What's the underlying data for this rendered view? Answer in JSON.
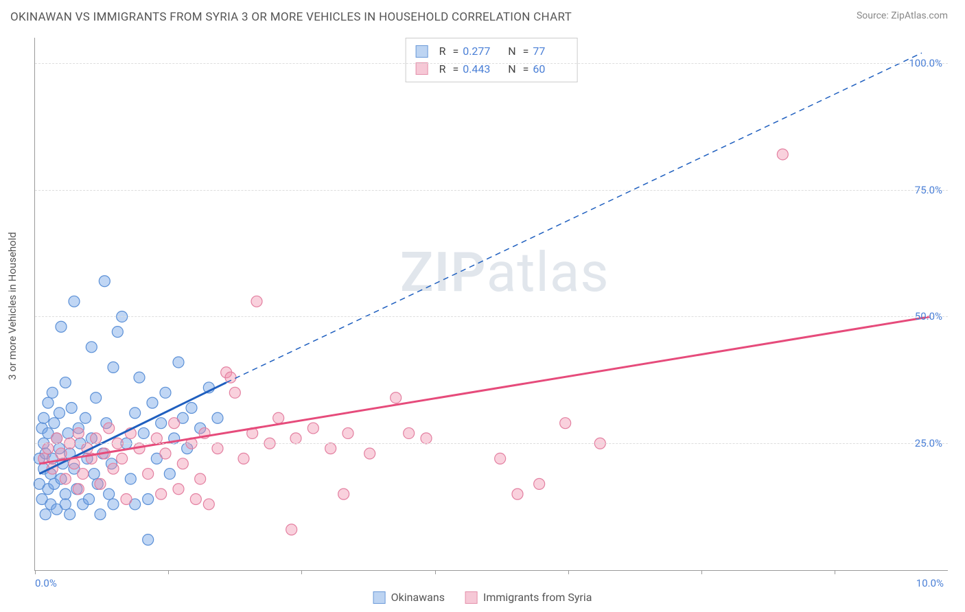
{
  "header": {
    "title": "OKINAWAN VS IMMIGRANTS FROM SYRIA 3 OR MORE VEHICLES IN HOUSEHOLD CORRELATION CHART",
    "source": "Source: ZipAtlas.com"
  },
  "watermark": {
    "zip": "ZIP",
    "atlas": "atlas"
  },
  "chart": {
    "type": "scatter",
    "background_color": "#ffffff",
    "grid_color": "#dddddd",
    "axis_color": "#999999",
    "xlim": [
      0,
      10.5
    ],
    "ylim": [
      0,
      105
    ],
    "x_axis": {
      "label_color": "#4a7fd6",
      "min_label": "0.0%",
      "max_label": "10.0%",
      "tick_positions_pct": [
        0,
        14.6,
        29.2,
        43.8,
        58.4,
        73.0,
        87.6
      ]
    },
    "y_axis": {
      "label": "3 or more Vehicles in Household",
      "label_fontsize": 15,
      "label_color": "#555555",
      "ticks": [
        {
          "value": 25,
          "label": "25.0%"
        },
        {
          "value": 50,
          "label": "50.0%"
        },
        {
          "value": 75,
          "label": "75.0%"
        },
        {
          "value": 100,
          "label": "100.0%"
        }
      ],
      "tick_color": "#4a7fd6"
    },
    "series": [
      {
        "id": "okinawans",
        "label": "Okinawans",
        "color_fill": "rgba(116,165,231,0.45)",
        "color_stroke": "#5a8fd6",
        "swatch_fill": "#bdd4f2",
        "swatch_border": "#6a99d8",
        "r_value": "0.277",
        "n_value": "77",
        "marker_radius": 8,
        "trend": {
          "color": "#1f5fbf",
          "width": 3,
          "solid": {
            "x1": 0.05,
            "y1": 19,
            "x2": 2.2,
            "y2": 37
          },
          "dashed": {
            "x1": 2.2,
            "y1": 37,
            "x2": 10.2,
            "y2": 102
          }
        },
        "points": [
          [
            0.05,
            17
          ],
          [
            0.05,
            22
          ],
          [
            0.08,
            28
          ],
          [
            0.08,
            14
          ],
          [
            0.1,
            20
          ],
          [
            0.1,
            25
          ],
          [
            0.1,
            30
          ],
          [
            0.12,
            11
          ],
          [
            0.12,
            23
          ],
          [
            0.15,
            16
          ],
          [
            0.15,
            27
          ],
          [
            0.15,
            33
          ],
          [
            0.18,
            19
          ],
          [
            0.18,
            13
          ],
          [
            0.2,
            35
          ],
          [
            0.2,
            22
          ],
          [
            0.22,
            29
          ],
          [
            0.22,
            17
          ],
          [
            0.25,
            26
          ],
          [
            0.25,
            12
          ],
          [
            0.28,
            24
          ],
          [
            0.28,
            31
          ],
          [
            0.3,
            18
          ],
          [
            0.3,
            48
          ],
          [
            0.32,
            21
          ],
          [
            0.35,
            15
          ],
          [
            0.35,
            37
          ],
          [
            0.38,
            27
          ],
          [
            0.4,
            11
          ],
          [
            0.4,
            23
          ],
          [
            0.42,
            32
          ],
          [
            0.45,
            20
          ],
          [
            0.48,
            16
          ],
          [
            0.5,
            28
          ],
          [
            0.52,
            25
          ],
          [
            0.55,
            13
          ],
          [
            0.58,
            30
          ],
          [
            0.6,
            22
          ],
          [
            0.62,
            14
          ],
          [
            0.65,
            26
          ],
          [
            0.68,
            19
          ],
          [
            0.7,
            34
          ],
          [
            0.72,
            17
          ],
          [
            0.75,
            11
          ],
          [
            0.78,
            23
          ],
          [
            0.8,
            57
          ],
          [
            0.82,
            29
          ],
          [
            0.85,
            15
          ],
          [
            0.88,
            21
          ],
          [
            0.9,
            40
          ],
          [
            0.95,
            47
          ],
          [
            1.0,
            50
          ],
          [
            1.05,
            25
          ],
          [
            1.1,
            18
          ],
          [
            1.15,
            31
          ],
          [
            1.2,
            38
          ],
          [
            1.25,
            27
          ],
          [
            1.3,
            14
          ],
          [
            1.3,
            6
          ],
          [
            1.35,
            33
          ],
          [
            1.4,
            22
          ],
          [
            1.45,
            29
          ],
          [
            1.5,
            35
          ],
          [
            1.55,
            19
          ],
          [
            1.6,
            26
          ],
          [
            1.65,
            41
          ],
          [
            1.7,
            30
          ],
          [
            1.75,
            24
          ],
          [
            1.8,
            32
          ],
          [
            1.9,
            28
          ],
          [
            2.0,
            36
          ],
          [
            2.1,
            30
          ],
          [
            1.15,
            13
          ],
          [
            0.65,
            44
          ],
          [
            0.45,
            53
          ],
          [
            0.9,
            13
          ],
          [
            0.35,
            13
          ]
        ]
      },
      {
        "id": "syria",
        "label": "Immigrants from Syria",
        "color_fill": "rgba(240,140,170,0.40)",
        "color_stroke": "#e37fa0",
        "swatch_fill": "#f6c8d6",
        "swatch_border": "#e48faa",
        "r_value": "0.443",
        "n_value": "60",
        "marker_radius": 8,
        "trend": {
          "color": "#e64b7b",
          "width": 3,
          "solid": {
            "x1": 0.05,
            "y1": 21,
            "x2": 10.3,
            "y2": 50
          },
          "dashed": null
        },
        "points": [
          [
            0.1,
            22
          ],
          [
            0.15,
            24
          ],
          [
            0.2,
            20
          ],
          [
            0.25,
            26
          ],
          [
            0.3,
            23
          ],
          [
            0.35,
            18
          ],
          [
            0.4,
            25
          ],
          [
            0.45,
            21
          ],
          [
            0.5,
            27
          ],
          [
            0.55,
            19
          ],
          [
            0.6,
            24
          ],
          [
            0.65,
            22
          ],
          [
            0.7,
            26
          ],
          [
            0.75,
            17
          ],
          [
            0.8,
            23
          ],
          [
            0.85,
            28
          ],
          [
            0.9,
            20
          ],
          [
            0.95,
            25
          ],
          [
            1.0,
            22
          ],
          [
            1.1,
            27
          ],
          [
            1.2,
            24
          ],
          [
            1.3,
            19
          ],
          [
            1.4,
            26
          ],
          [
            1.5,
            23
          ],
          [
            1.6,
            29
          ],
          [
            1.7,
            21
          ],
          [
            1.8,
            25
          ],
          [
            1.85,
            14
          ],
          [
            1.9,
            18
          ],
          [
            1.95,
            27
          ],
          [
            2.0,
            13
          ],
          [
            2.1,
            24
          ],
          [
            2.2,
            39
          ],
          [
            2.25,
            38
          ],
          [
            2.3,
            35
          ],
          [
            2.4,
            22
          ],
          [
            2.5,
            27
          ],
          [
            2.55,
            53
          ],
          [
            2.7,
            25
          ],
          [
            2.8,
            30
          ],
          [
            2.95,
            8
          ],
          [
            3.0,
            26
          ],
          [
            3.2,
            28
          ],
          [
            3.4,
            24
          ],
          [
            3.55,
            15
          ],
          [
            3.6,
            27
          ],
          [
            3.85,
            23
          ],
          [
            4.15,
            34
          ],
          [
            4.3,
            27
          ],
          [
            4.5,
            26
          ],
          [
            5.35,
            22
          ],
          [
            5.55,
            15
          ],
          [
            5.8,
            17
          ],
          [
            6.1,
            29
          ],
          [
            6.5,
            25
          ],
          [
            8.6,
            82
          ],
          [
            1.05,
            14
          ],
          [
            1.45,
            15
          ],
          [
            0.5,
            16
          ],
          [
            1.65,
            16
          ]
        ]
      }
    ],
    "stats_box": {
      "r_label": "R",
      "n_label": "N",
      "eq": "="
    },
    "legend_bottom": {
      "items": [
        "okinawans",
        "syria"
      ]
    }
  }
}
